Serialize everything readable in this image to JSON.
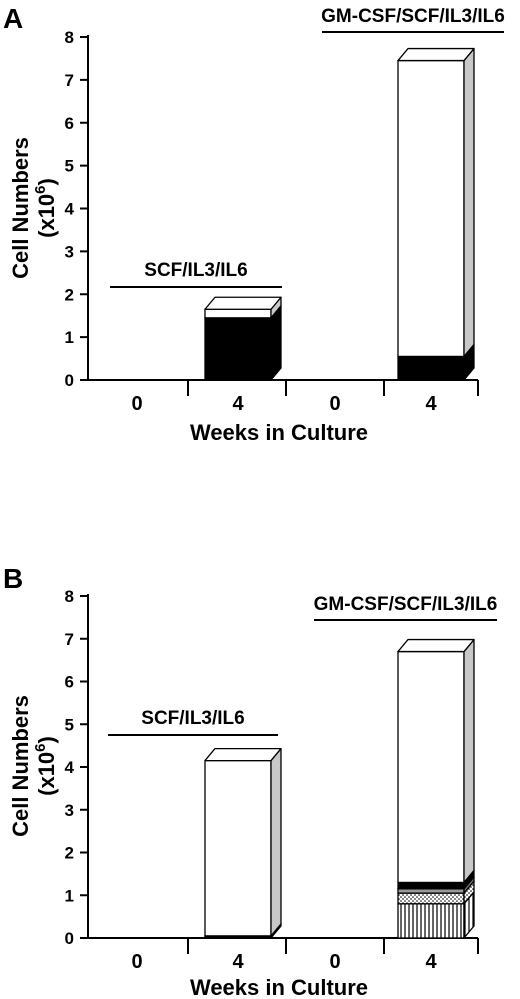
{
  "chart_data": [
    {
      "panel_letter": "A",
      "type": "bar",
      "style": "stacked 3D bars",
      "ylabel": "Cell Numbers",
      "ylabel_unit_base": "(x10",
      "ylabel_unit_exp": "6",
      "ylabel_unit_close": ")",
      "xlabel": "Weeks in Culture",
      "ylim": [
        0,
        8
      ],
      "yticks": [
        "0",
        "1",
        "2",
        "3",
        "4",
        "5",
        "6",
        "7",
        "8"
      ],
      "categories": [
        "0",
        "4",
        "0",
        "4"
      ],
      "groups": [
        {
          "label": "SCF/IL3/IL6",
          "categories": [
            0,
            1
          ]
        },
        {
          "label": "GM-CSF/SCF/IL3/IL6",
          "categories": [
            2,
            3
          ]
        }
      ],
      "bars": [
        {
          "category": 0,
          "segments": []
        },
        {
          "category": 1,
          "segments": [
            {
              "value": 1.45,
              "pattern": "solid-black"
            },
            {
              "value": 0.2,
              "pattern": "white"
            }
          ]
        },
        {
          "category": 2,
          "segments": []
        },
        {
          "category": 3,
          "segments": [
            {
              "value": 0.55,
              "pattern": "solid-black"
            },
            {
              "value": 6.9,
              "pattern": "white"
            }
          ]
        }
      ]
    },
    {
      "panel_letter": "B",
      "type": "bar",
      "style": "stacked 3D bars",
      "ylabel": "Cell Numbers",
      "ylabel_unit_base": "(x10",
      "ylabel_unit_exp": "6",
      "ylabel_unit_close": ")",
      "xlabel": "Weeks in Culture",
      "ylim": [
        0,
        8
      ],
      "yticks": [
        "0",
        "1",
        "2",
        "3",
        "4",
        "5",
        "6",
        "7",
        "8"
      ],
      "categories": [
        "0",
        "4",
        "0",
        "4"
      ],
      "groups": [
        {
          "label": "SCF/IL3/IL6",
          "categories": [
            0,
            1
          ]
        },
        {
          "label": "GM-CSF/SCF/IL3/IL6",
          "categories": [
            2,
            3
          ]
        }
      ],
      "bars": [
        {
          "category": 0,
          "segments": []
        },
        {
          "category": 1,
          "segments": [
            {
              "value": 0.05,
              "pattern": "solid-black"
            },
            {
              "value": 4.1,
              "pattern": "white"
            }
          ]
        },
        {
          "category": 2,
          "segments": []
        },
        {
          "category": 3,
          "segments": [
            {
              "value": 0.8,
              "pattern": "vertical-stripes"
            },
            {
              "value": 0.25,
              "pattern": "dotted"
            },
            {
              "value": 0.1,
              "pattern": "gray"
            },
            {
              "value": 0.15,
              "pattern": "solid-black"
            },
            {
              "value": 5.4,
              "pattern": "white"
            }
          ]
        }
      ]
    }
  ]
}
